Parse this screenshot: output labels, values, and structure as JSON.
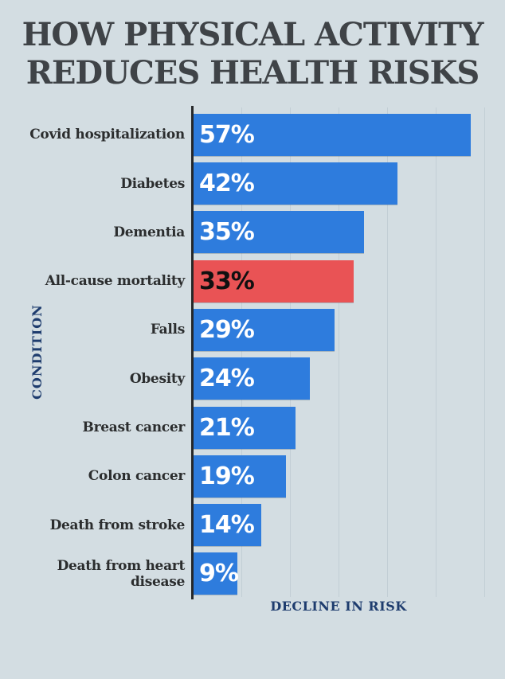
{
  "title": {
    "line1": "HOW PHYSICAL ACTIVITY",
    "line2": "REDUCES HEALTH RISKS"
  },
  "chart_data": {
    "type": "bar",
    "orientation": "horizontal",
    "title": "HOW PHYSICAL ACTIVITY REDUCES HEALTH RISKS",
    "categories": [
      "Covid hospitalization",
      "Diabetes",
      "Dementia",
      "All-cause mortality",
      "Falls",
      "Obesity",
      "Breast cancer",
      "Colon cancer",
      "Death from stroke",
      "Death from heart disease"
    ],
    "values": [
      57,
      42,
      35,
      33,
      29,
      24,
      21,
      19,
      14,
      9
    ],
    "value_suffix": "%",
    "highlight_index": 3,
    "xlabel": "DECLINE IN RISK",
    "ylabel": "CONDITION",
    "xlim": [
      0,
      60
    ],
    "gridline_values": [
      10,
      20,
      30,
      40,
      50,
      60
    ],
    "legend": "none",
    "grid": "vertical",
    "colors": {
      "background": "#d3dde2",
      "bar": "#2e7cdd",
      "highlight_bar": "#e95355",
      "value_label": "#ffffff",
      "highlight_value_label": "#101010",
      "gridline": "#c2ced5",
      "axis_line": "#26282a",
      "category_label": "#2b2d2e",
      "axis_title": "#1e3c6e",
      "title": "#3f4347"
    }
  }
}
